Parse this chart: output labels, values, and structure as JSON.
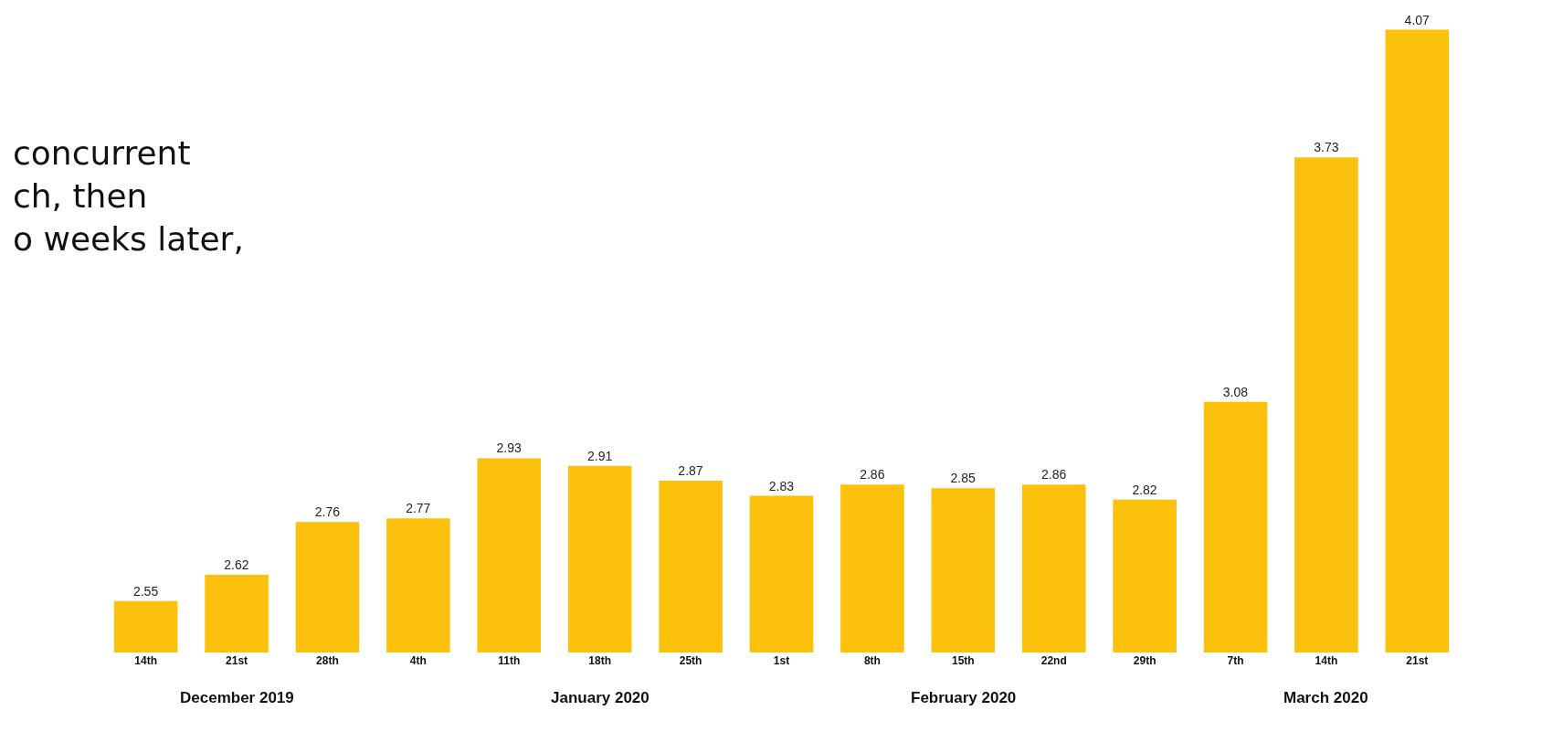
{
  "chart_data": {
    "type": "bar",
    "categories": [
      "14th",
      "21st",
      "28th",
      "4th",
      "11th",
      "18th",
      "25th",
      "1st",
      "8th",
      "15th",
      "22nd",
      "29th",
      "7th",
      "14th",
      "21st"
    ],
    "values": [
      2.55,
      2.62,
      2.76,
      2.77,
      2.93,
      2.91,
      2.87,
      2.83,
      2.86,
      2.85,
      2.86,
      2.82,
      3.08,
      3.73,
      4.07
    ],
    "color": "#fcc10c",
    "data_labels": true,
    "tick_labels": "x",
    "annotations": [
      "concurrent\nch, then\no weeks later,",
      "December 2019",
      "January 2020",
      "February 2020",
      "March 2020"
    ]
  }
}
